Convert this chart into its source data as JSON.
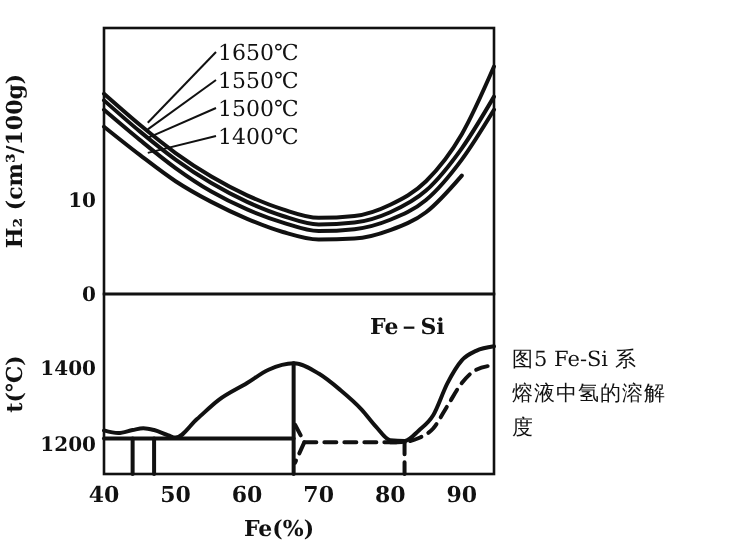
{
  "chart_data": [
    {
      "type": "line",
      "ylabel": "H₂ (cm³/100g)",
      "xlim": [
        40,
        94.5
      ],
      "ylim": [
        0,
        28.3
      ],
      "yticks": [
        0,
        10
      ],
      "tick_labels": "y",
      "grid": false,
      "legend": "top left",
      "marker": "none",
      "line_style": "solid",
      "x": [
        40,
        45,
        50,
        55,
        60,
        65,
        70,
        75,
        80,
        85,
        90,
        94.5
      ],
      "series": [
        {
          "name": "1650℃",
          "color": "#111111",
          "values": [
            21.3,
            18.0,
            15.0,
            12.5,
            10.5,
            9.0,
            8.1,
            8.3,
            9.5,
            12.0,
            17.0,
            24.2
          ]
        },
        {
          "name": "1550℃",
          "color": "#111111",
          "values": [
            20.6,
            17.3,
            14.3,
            11.8,
            9.8,
            8.3,
            7.4,
            7.6,
            8.7,
            11.0,
            15.5,
            21.0
          ]
        },
        {
          "name": "1500℃",
          "color": "#111111",
          "values": [
            19.6,
            16.4,
            13.4,
            10.9,
            9.0,
            7.6,
            6.7,
            6.9,
            7.9,
            10.0,
            14.3,
            19.6
          ]
        },
        {
          "name": "1400℃",
          "color": "#111111",
          "values": [
            17.8,
            14.8,
            12.0,
            9.8,
            8.0,
            6.6,
            5.8,
            5.9,
            6.8,
            8.7,
            12.6,
            null
          ]
        }
      ]
    },
    {
      "type": "line",
      "xlabel": "Fe(%)",
      "ylabel": "t(℃)",
      "xlim": [
        40,
        94.5
      ],
      "ylim": [
        1120,
        1595
      ],
      "xticks": [
        40,
        50,
        60,
        70,
        80,
        90
      ],
      "yticks": [
        1200,
        1400
      ],
      "grid": false,
      "marker": "none",
      "line_style": "solid",
      "annotations": [
        "Fe－Si",
        "图5  Fe-Si 系熔液中氢的溶解度"
      ],
      "series": [
        {
          "color": "#111111",
          "x": [
            40,
            42,
            44,
            45.5,
            47,
            49,
            50,
            53,
            56,
            60,
            63,
            66.5,
            70,
            73,
            76,
            78,
            80,
            82,
            84,
            86,
            88,
            90,
            92,
            94.5
          ],
          "values": [
            1235,
            1228,
            1236,
            1241,
            1236,
            1222,
            1216,
            1265,
            1315,
            1360,
            1395,
            1412,
            1385,
            1342,
            1290,
            1245,
            1209,
            1207,
            1235,
            1275,
            1360,
            1420,
            1445,
            1457
          ]
        },
        {
          "color": "#111111",
          "x": [
            40,
            66.5
          ],
          "values": [
            1214,
            1214
          ]
        },
        {
          "color": "#111111",
          "x": [
            44,
            44
          ],
          "values": [
            1214,
            1120
          ]
        },
        {
          "color": "#111111",
          "x": [
            47,
            47
          ],
          "values": [
            1214,
            1120
          ]
        },
        {
          "color": "#111111",
          "x": [
            66.5,
            66.5
          ],
          "values": [
            1412,
            1120
          ]
        },
        {
          "color": "#111111",
          "line_style": "dashed",
          "x": [
            66.7,
            68,
            66.7
          ],
          "values": [
            1250,
            1204,
            1150
          ]
        },
        {
          "color": "#111111",
          "line_style": "dashed",
          "x": [
            68,
            82
          ],
          "values": [
            1204,
            1204
          ]
        },
        {
          "color": "#111111",
          "line_style": "dashed",
          "x": [
            82,
            82
          ],
          "values": [
            1204,
            1120
          ]
        },
        {
          "color": "#111111",
          "line_style": "dashed",
          "x": [
            80,
            82,
            84,
            86,
            88,
            90,
            92,
            94.5
          ],
          "values": [
            1204,
            1205,
            1215,
            1240,
            1300,
            1360,
            1395,
            1407
          ]
        }
      ]
    }
  ]
}
